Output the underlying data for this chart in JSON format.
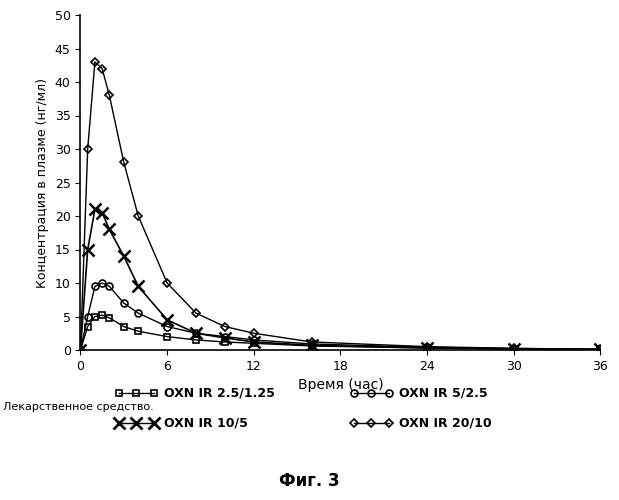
{
  "xlabel": "Время (час)",
  "ylabel": "Концентрация в плазме (нг/мл)",
  "figcaption": "Фиг. 3",
  "legend_title": "Лекарственное средство.",
  "xlim": [
    0,
    36
  ],
  "ylim": [
    0,
    50
  ],
  "xticks": [
    0,
    6,
    12,
    18,
    24,
    30,
    36
  ],
  "yticks": [
    0,
    5,
    10,
    15,
    20,
    25,
    30,
    35,
    40,
    45,
    50
  ],
  "series": [
    {
      "label": "OXN IR 2.5/1.25",
      "marker": "s",
      "color": "#000000",
      "linewidth": 1.0,
      "markersize": 5,
      "x": [
        0,
        0.5,
        1,
        1.5,
        2,
        3,
        4,
        6,
        8,
        10,
        12,
        16,
        24,
        30,
        36
      ],
      "y": [
        0,
        3.5,
        5.0,
        5.2,
        4.8,
        3.5,
        2.8,
        2.0,
        1.5,
        1.2,
        1.0,
        0.6,
        0.3,
        0.15,
        0.1
      ]
    },
    {
      "label": "OXN IR 10/5",
      "marker": "x",
      "color": "#000000",
      "linewidth": 1.2,
      "markersize": 9,
      "x": [
        0,
        0.5,
        1,
        1.5,
        2,
        3,
        4,
        6,
        8,
        10,
        12,
        16,
        24,
        30,
        36
      ],
      "y": [
        0,
        15.0,
        21.0,
        20.5,
        18.0,
        14.0,
        9.5,
        4.5,
        2.5,
        1.8,
        1.2,
        0.7,
        0.3,
        0.2,
        0.1
      ]
    },
    {
      "label": "OXN IR 5/2.5",
      "marker": "o",
      "color": "#000000",
      "linewidth": 1.0,
      "markersize": 5,
      "x": [
        0,
        0.5,
        1,
        1.5,
        2,
        3,
        4,
        6,
        8,
        10,
        12,
        16,
        24,
        30,
        36
      ],
      "y": [
        0,
        5.0,
        9.5,
        10.0,
        9.5,
        7.0,
        5.5,
        3.5,
        2.5,
        2.0,
        1.5,
        0.9,
        0.4,
        0.2,
        0.1
      ]
    },
    {
      "label": "OXN IR 20/10",
      "marker": "D",
      "color": "#000000",
      "linewidth": 1.0,
      "markersize": 4,
      "x": [
        0,
        0.5,
        1,
        1.5,
        2,
        3,
        4,
        6,
        8,
        10,
        12,
        16,
        24,
        30,
        36
      ],
      "y": [
        0,
        30.0,
        43.0,
        42.0,
        38.0,
        28.0,
        20.0,
        10.0,
        5.5,
        3.5,
        2.5,
        1.2,
        0.5,
        0.25,
        0.1
      ]
    }
  ],
  "background_color": "#ffffff"
}
